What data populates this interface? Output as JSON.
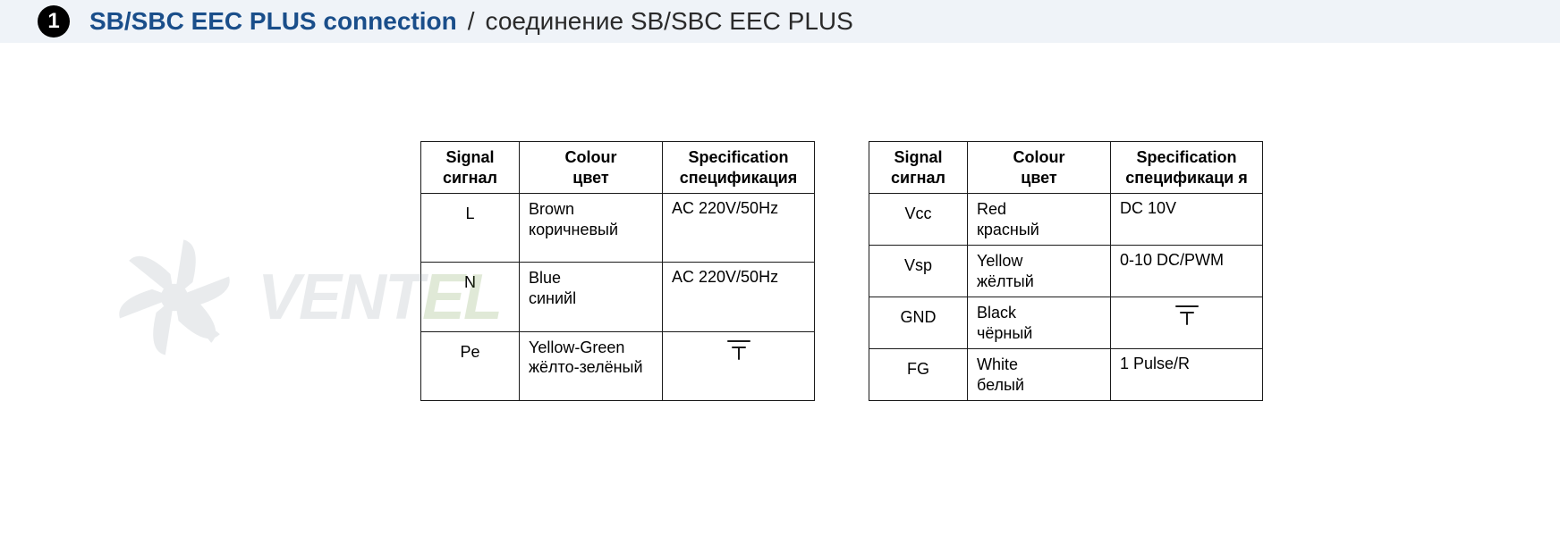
{
  "header": {
    "bullet": "1",
    "title_en": "SB/SBC EEC PLUS connection",
    "separator": "/",
    "title_ru": "соединение SB/SBC EEC PLUS",
    "bar_bg": "#eff3f8",
    "title_en_color": "#1a4e8a",
    "title_ru_color": "#2a2a2a",
    "title_fontsize": 28
  },
  "watermark": {
    "text_part1": "VENT",
    "text_part2": "EL",
    "color_gray": "#8a97a0",
    "color_green": "#5a8a2a",
    "opacity": 0.18,
    "fontsize": 72
  },
  "table_headers": {
    "signal_en": "Signal",
    "signal_ru": "сигнал",
    "colour_en": "Colour",
    "colour_ru": "цвет",
    "spec_en": "Specification",
    "spec_ru_left": "спецификация",
    "spec_ru_right": "спецификаци я"
  },
  "table_style": {
    "border_color": "#1a1a1a",
    "border_width": 1.5,
    "cell_fontsize": 18,
    "header_fontweight": "bold",
    "background": "#ffffff",
    "col_widths": {
      "signal": 110,
      "colour": 160,
      "spec": 170
    }
  },
  "left_table": {
    "rows": [
      {
        "signal": "L",
        "colour_en": "Brown",
        "colour_ru": "коричневый",
        "spec": "AC 220V/50Hz",
        "ground": false
      },
      {
        "signal": "N",
        "colour_en": "Blue",
        "colour_ru": "синийl",
        "spec": "AC 220V/50Hz",
        "ground": false
      },
      {
        "signal": "Pe",
        "colour_en": "Yellow-Green",
        "colour_ru": "жёлто-зелёный",
        "spec": "",
        "ground": true
      }
    ]
  },
  "right_table": {
    "rows": [
      {
        "signal": "Vcc",
        "colour_en": "Red",
        "colour_ru": "красный",
        "spec": "DC 10V",
        "ground": false
      },
      {
        "signal": "Vsp",
        "colour_en": "Yellow",
        "colour_ru": "жёлтый",
        "spec": "0-10 DC/PWM",
        "ground": false
      },
      {
        "signal": "GND",
        "colour_en": "Black",
        "colour_ru": "чёрный",
        "spec": "",
        "ground": true
      },
      {
        "signal": "FG",
        "colour_en": "White",
        "colour_ru": "белый",
        "spec": "1 Pulse/R",
        "ground": false
      }
    ]
  },
  "ground_symbol": {
    "color": "#1a1a1a",
    "width": 30,
    "height": 26
  }
}
